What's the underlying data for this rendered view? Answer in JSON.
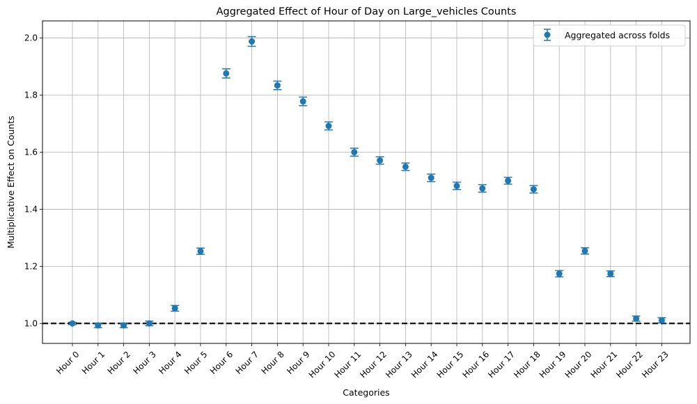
{
  "chart_data": {
    "type": "scatter",
    "title": "Aggregated Effect of Hour of Day on Large_vehicles Counts",
    "xlabel": "Categories",
    "ylabel": "Multiplicative Effect on Counts",
    "ylim": [
      0.93,
      2.06
    ],
    "yticks": [
      1.0,
      1.2,
      1.4,
      1.6,
      1.8,
      2.0
    ],
    "ytick_labels": [
      "1.0",
      "1.2",
      "1.4",
      "1.6",
      "1.8",
      "2.0"
    ],
    "grid": true,
    "reference_line": 1.0,
    "legend": {
      "label": "Aggregated across folds",
      "placement": "top-right"
    },
    "categories": [
      "Hour 0",
      "Hour 1",
      "Hour 2",
      "Hour 3",
      "Hour 4",
      "Hour 5",
      "Hour 6",
      "Hour 7",
      "Hour 8",
      "Hour 9",
      "Hour 10",
      "Hour 11",
      "Hour 12",
      "Hour 13",
      "Hour 14",
      "Hour 15",
      "Hour 16",
      "Hour 17",
      "Hour 18",
      "Hour 19",
      "Hour 20",
      "Hour 21",
      "Hour 22",
      "Hour 23"
    ],
    "series": [
      {
        "name": "Aggregated across folds",
        "values": [
          1.0,
          0.993,
          0.993,
          1.0,
          1.053,
          1.253,
          1.876,
          1.988,
          1.834,
          1.778,
          1.692,
          1.6,
          1.571,
          1.549,
          1.51,
          1.482,
          1.473,
          1.5,
          1.47,
          1.174,
          1.254,
          1.174,
          1.017,
          1.011
        ],
        "errors": [
          0.004,
          0.008,
          0.008,
          0.008,
          0.01,
          0.011,
          0.016,
          0.017,
          0.015,
          0.015,
          0.014,
          0.014,
          0.013,
          0.013,
          0.013,
          0.013,
          0.013,
          0.012,
          0.013,
          0.011,
          0.011,
          0.01,
          0.009,
          0.009
        ],
        "color": "#1f77b4"
      }
    ]
  }
}
